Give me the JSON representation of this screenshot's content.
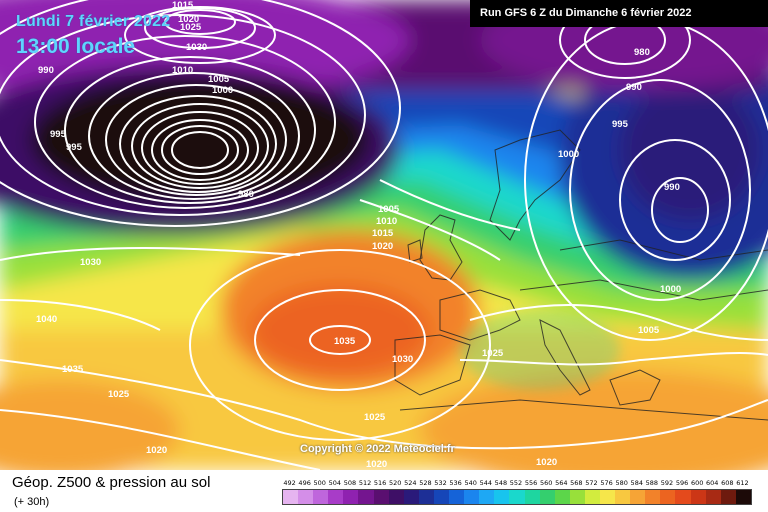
{
  "header": {
    "date_title": "Lundi 7 février 2022",
    "time_title": "13:00 locale",
    "run_label": "Run GFS 6 Z du Dimanche 6 février 2022"
  },
  "footer": {
    "product_title": "Géop. Z500 & pression au sol",
    "lead_time": "(+ 30h)",
    "copyright": "Copyright © 2022 Meteociel.fr"
  },
  "legend": {
    "labels": [
      "492",
      "496",
      "500",
      "504",
      "508",
      "512",
      "516",
      "520",
      "524",
      "528",
      "532",
      "536",
      "540",
      "544",
      "548",
      "552",
      "556",
      "560",
      "564",
      "568",
      "572",
      "576",
      "580",
      "584",
      "588",
      "592",
      "596",
      "600",
      "604",
      "608",
      "612"
    ],
    "colors": [
      "#e6b4f0",
      "#d48ee8",
      "#bf66dc",
      "#a83cc8",
      "#8f22b0",
      "#74158f",
      "#5a0f70",
      "#3e0f66",
      "#2a1a7a",
      "#1d2f96",
      "#1646b8",
      "#1563d8",
      "#1b85ee",
      "#1ea8f4",
      "#18c4ee",
      "#1ad8cc",
      "#1ed6a0",
      "#34cf6e",
      "#5cd64a",
      "#98e03a",
      "#d2ec3e",
      "#f6e64a",
      "#f8c840",
      "#f6a436",
      "#f2822a",
      "#ec6420",
      "#e44a1c",
      "#cc3616",
      "#a82a14",
      "#6e1a0e",
      "#1c0a08"
    ]
  },
  "map": {
    "pressure_labels": [
      {
        "text": "1015"
      },
      {
        "text": "1020"
      },
      {
        "text": "1025"
      },
      {
        "text": "1030"
      },
      {
        "text": "990"
      },
      {
        "text": "1010"
      },
      {
        "text": "1005"
      },
      {
        "text": "1000"
      },
      {
        "text": "995"
      },
      {
        "text": "995"
      },
      {
        "text": "980"
      },
      {
        "text": "1030"
      },
      {
        "text": "1040"
      },
      {
        "text": "1035"
      },
      {
        "text": "1025"
      },
      {
        "text": "1020"
      },
      {
        "text": "1005"
      },
      {
        "text": "1010"
      },
      {
        "text": "1015"
      },
      {
        "text": "1020"
      },
      {
        "text": "1035"
      },
      {
        "text": "1030"
      },
      {
        "text": "1025"
      },
      {
        "text": "1025"
      },
      {
        "text": "1020"
      },
      {
        "text": "1000"
      },
      {
        "text": "995"
      },
      {
        "text": "990"
      },
      {
        "text": "980"
      },
      {
        "text": "990"
      },
      {
        "text": "1000"
      },
      {
        "text": "1005"
      },
      {
        "text": "1020"
      }
    ]
  }
}
